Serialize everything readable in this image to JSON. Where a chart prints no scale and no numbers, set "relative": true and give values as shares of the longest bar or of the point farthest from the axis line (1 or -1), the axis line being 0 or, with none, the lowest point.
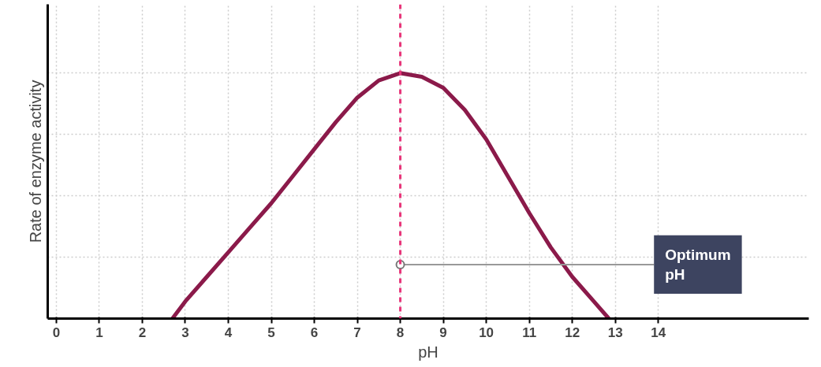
{
  "chart_data": {
    "type": "line",
    "relative": true,
    "xlabel": "pH",
    "ylabel": "Rate of enzyme activity",
    "x": [
      2.7,
      3,
      3.5,
      4,
      4.5,
      5,
      5.5,
      6,
      6.5,
      7,
      7.5,
      8,
      8.5,
      9,
      9.5,
      10,
      10.5,
      11,
      11.5,
      12,
      12.5,
      12.85
    ],
    "series": [
      {
        "color": "#8b1a4a",
        "values": [
          0,
          0.07,
          0.17,
          0.27,
          0.37,
          0.47,
          0.58,
          0.69,
          0.8,
          0.9,
          0.97,
          1,
          0.985,
          0.94,
          0.85,
          0.73,
          0.58,
          0.43,
          0.29,
          0.17,
          0.07,
          0
        ]
      }
    ],
    "xlim": [
      -0.2,
      17.5
    ],
    "xticks": [
      0,
      1,
      2,
      3,
      4,
      5,
      6,
      7,
      8,
      9,
      10,
      11,
      12,
      13,
      14
    ],
    "ref_lines": [
      {
        "axis": "x",
        "value": 8,
        "label": null,
        "color": "#e8357a",
        "line_style": "dashed"
      }
    ],
    "annotations": [
      {
        "text": "Optimum pH",
        "x": 8,
        "y": 0.22
      }
    ],
    "grid": true,
    "marker": "none",
    "line_style": "solid"
  }
}
